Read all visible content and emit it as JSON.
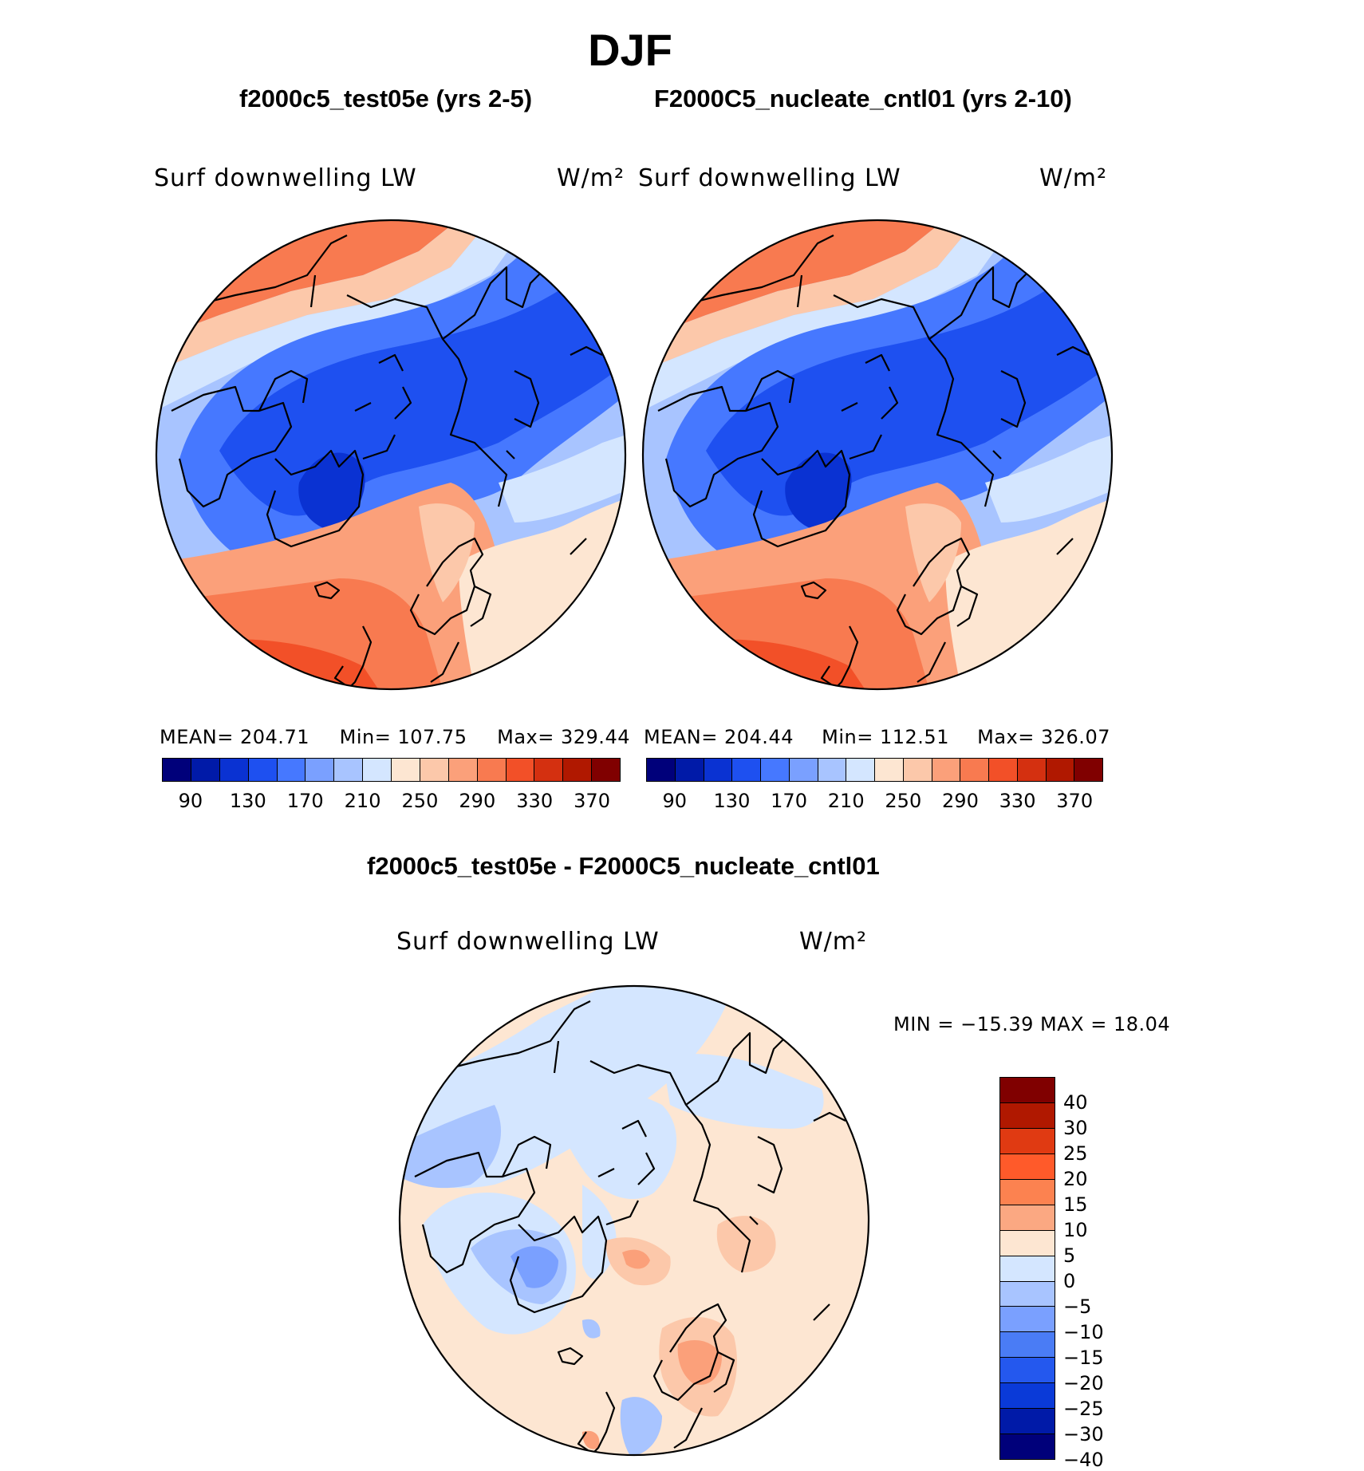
{
  "title": "DJF",
  "panels": [
    {
      "case": "f2000c5_test05e (yrs 2-5)",
      "variable": "Surf downwelling LW",
      "units": "W/m²",
      "stats": {
        "mean_label": "MEAN=",
        "mean": "204.71",
        "min_label": "Min=",
        "min": "107.75",
        "max_label": "Max=",
        "max": "329.44"
      }
    },
    {
      "case": "F2000C5_nucleate_cntl01 (yrs 2-10)",
      "variable": "Surf downwelling LW",
      "units": "W/m²",
      "stats": {
        "mean_label": "MEAN=",
        "mean": "204.44",
        "min_label": "Min=",
        "min": "112.51",
        "max_label": "Max=",
        "max": "326.07"
      }
    }
  ],
  "diff_panel": {
    "case": "f2000c5_test05e - F2000C5_nucleate_cntl01",
    "variable": "Surf downwelling LW",
    "units": "W/m²",
    "minmax": "MIN = −15.39 MAX =  18.04"
  },
  "abs_colorbar": {
    "colors": [
      "#00007a",
      "#001aa8",
      "#0a32d2",
      "#1e50f0",
      "#4678ff",
      "#7aa0ff",
      "#a8c4ff",
      "#d4e6ff",
      "#fde6d2",
      "#fcc8aa",
      "#fba07a",
      "#f87a50",
      "#f25028",
      "#d43010",
      "#b01800",
      "#800000"
    ],
    "tick_labels": [
      "90",
      "130",
      "170",
      "210",
      "250",
      "290",
      "330",
      "370"
    ]
  },
  "diff_colorbar": {
    "colors_top_to_bottom": [
      "#800000",
      "#b01800",
      "#e03a12",
      "#ff5a2a",
      "#fc8250",
      "#fba882",
      "#fde6d2",
      "#d4e6ff",
      "#a8c4ff",
      "#7aa0ff",
      "#4a7cf5",
      "#2458ee",
      "#0a3ad8",
      "#001aa8",
      "#00007a"
    ],
    "tick_labels": [
      "40",
      "30",
      "25",
      "20",
      "15",
      "10",
      "5",
      "0",
      "−5",
      "−10",
      "−15",
      "−20",
      "−25",
      "−30",
      "−40"
    ]
  }
}
